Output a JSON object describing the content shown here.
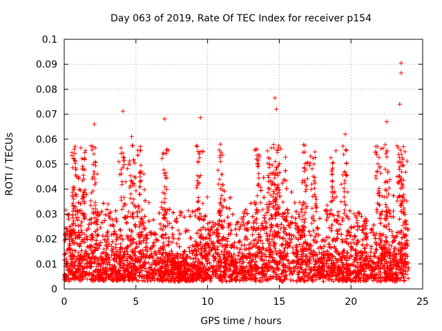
{
  "chart_data": {
    "type": "scatter",
    "title": "Day 063 of 2019, Rate Of TEC Index for receiver p154",
    "xlabel": "GPS time / hours",
    "ylabel": "ROTI / TECUs",
    "xlim": [
      0,
      25
    ],
    "ylim": [
      0,
      0.1
    ],
    "xticks": [
      0,
      5,
      10,
      15,
      20,
      25
    ],
    "yticks": [
      0,
      0.01,
      0.02,
      0.03,
      0.04,
      0.05,
      0.06,
      0.07,
      0.08,
      0.09,
      0.1
    ],
    "xtick_labels": [
      "0",
      "5",
      "10",
      "15",
      "20",
      "25"
    ],
    "ytick_labels": [
      "0",
      "0.01",
      "0.02",
      "0.03",
      "0.04",
      "0.05",
      "0.06",
      "0.07",
      "0.08",
      "0.09",
      "0.1"
    ],
    "grid": true,
    "marker": "plus",
    "color": "#ff0000",
    "series": [
      {
        "name": "ROTI",
        "notable_points": [
          {
            "x": 4.1,
            "y": 0.0712
          },
          {
            "x": 7.0,
            "y": 0.0681
          },
          {
            "x": 9.5,
            "y": 0.0686
          },
          {
            "x": 2.1,
            "y": 0.066
          },
          {
            "x": 14.7,
            "y": 0.0765
          },
          {
            "x": 14.8,
            "y": 0.072
          },
          {
            "x": 23.5,
            "y": 0.0905
          },
          {
            "x": 23.5,
            "y": 0.0865
          },
          {
            "x": 23.4,
            "y": 0.074
          },
          {
            "x": 22.5,
            "y": 0.067
          },
          {
            "x": 19.6,
            "y": 0.062
          },
          {
            "x": 4.7,
            "y": 0.061
          },
          {
            "x": 0.7,
            "y": 0.056
          },
          {
            "x": 16.8,
            "y": 0.0575
          },
          {
            "x": 13.5,
            "y": 0.049
          },
          {
            "x": 10.9,
            "y": 0.051
          }
        ]
      }
    ]
  }
}
